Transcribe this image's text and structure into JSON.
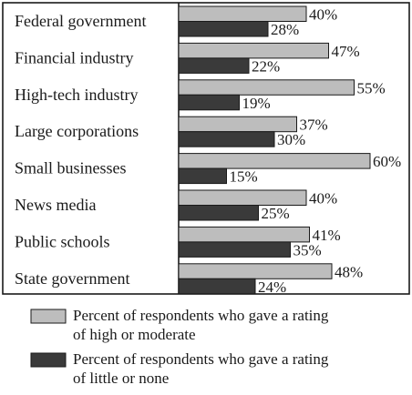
{
  "chart_data": {
    "type": "bar",
    "orientation": "horizontal",
    "categories": [
      "Federal government",
      "Financial industry",
      "High-tech industry",
      "Large corporations",
      "Small businesses",
      "News media",
      "Public schools",
      "State government"
    ],
    "series": [
      {
        "name": "Percent of respondents who gave a rating of high or moderate",
        "legend_lines": [
          "Percent of respondents who gave a rating",
          "of high or moderate"
        ],
        "color": "#bdbdbd",
        "values": [
          40,
          47,
          55,
          37,
          60,
          40,
          41,
          48
        ]
      },
      {
        "name": "Percent of respondents who gave a rating of little or none",
        "legend_lines": [
          "Percent of respondents who gave a rating",
          "of little or none"
        ],
        "color": "#3a3a3a",
        "values": [
          28,
          22,
          19,
          30,
          15,
          25,
          35,
          24
        ]
      }
    ],
    "value_suffix": "%",
    "xlim": [
      0,
      60
    ],
    "title": "",
    "xlabel": "",
    "ylabel": "",
    "grid": false,
    "legend_position": "bottom"
  }
}
